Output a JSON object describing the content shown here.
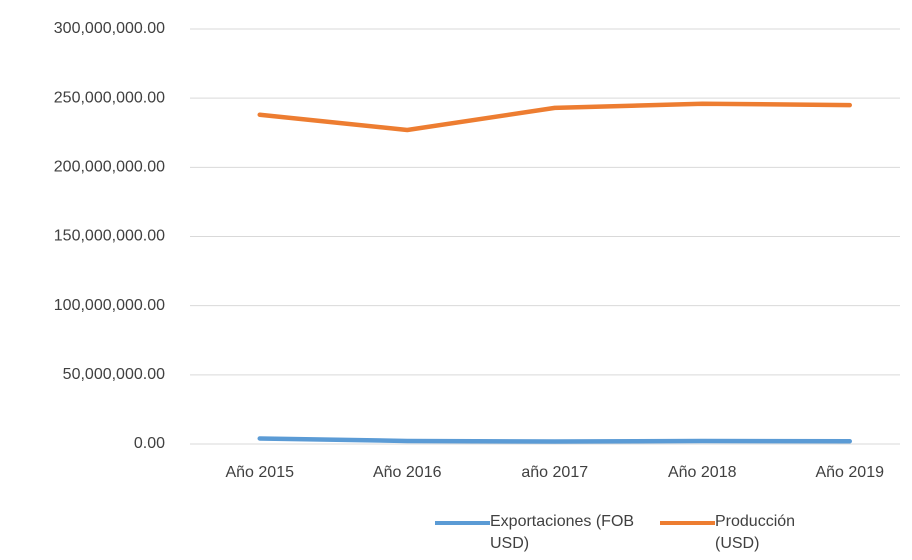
{
  "chart_data": {
    "type": "line",
    "categories": [
      "Año 2015",
      "Año 2016",
      "año 2017",
      "Año 2018",
      "Año 2019"
    ],
    "series": [
      {
        "name": "Exportaciones (FOB USD)",
        "color": "#5b9bd5",
        "values": [
          4000000,
          2200000,
          1800000,
          2200000,
          2000000
        ]
      },
      {
        "name": "Producción (USD)",
        "color": "#ed7d31",
        "values": [
          238000000,
          227000000,
          243000000,
          246000000,
          245000000
        ]
      }
    ],
    "ylim": [
      0,
      300000000
    ],
    "yticks": [
      {
        "value": 0,
        "label": "0.00"
      },
      {
        "value": 50000000,
        "label": "50,000,000.00"
      },
      {
        "value": 100000000,
        "label": "100,000,000.00"
      },
      {
        "value": 150000000,
        "label": "150,000,000.00"
      },
      {
        "value": 200000000,
        "label": "200,000,000.00"
      },
      {
        "value": 250000000,
        "label": "250,000,000.00"
      },
      {
        "value": 300000000,
        "label": "300,000,000.00"
      }
    ],
    "grid": true,
    "legend": "bottom"
  }
}
